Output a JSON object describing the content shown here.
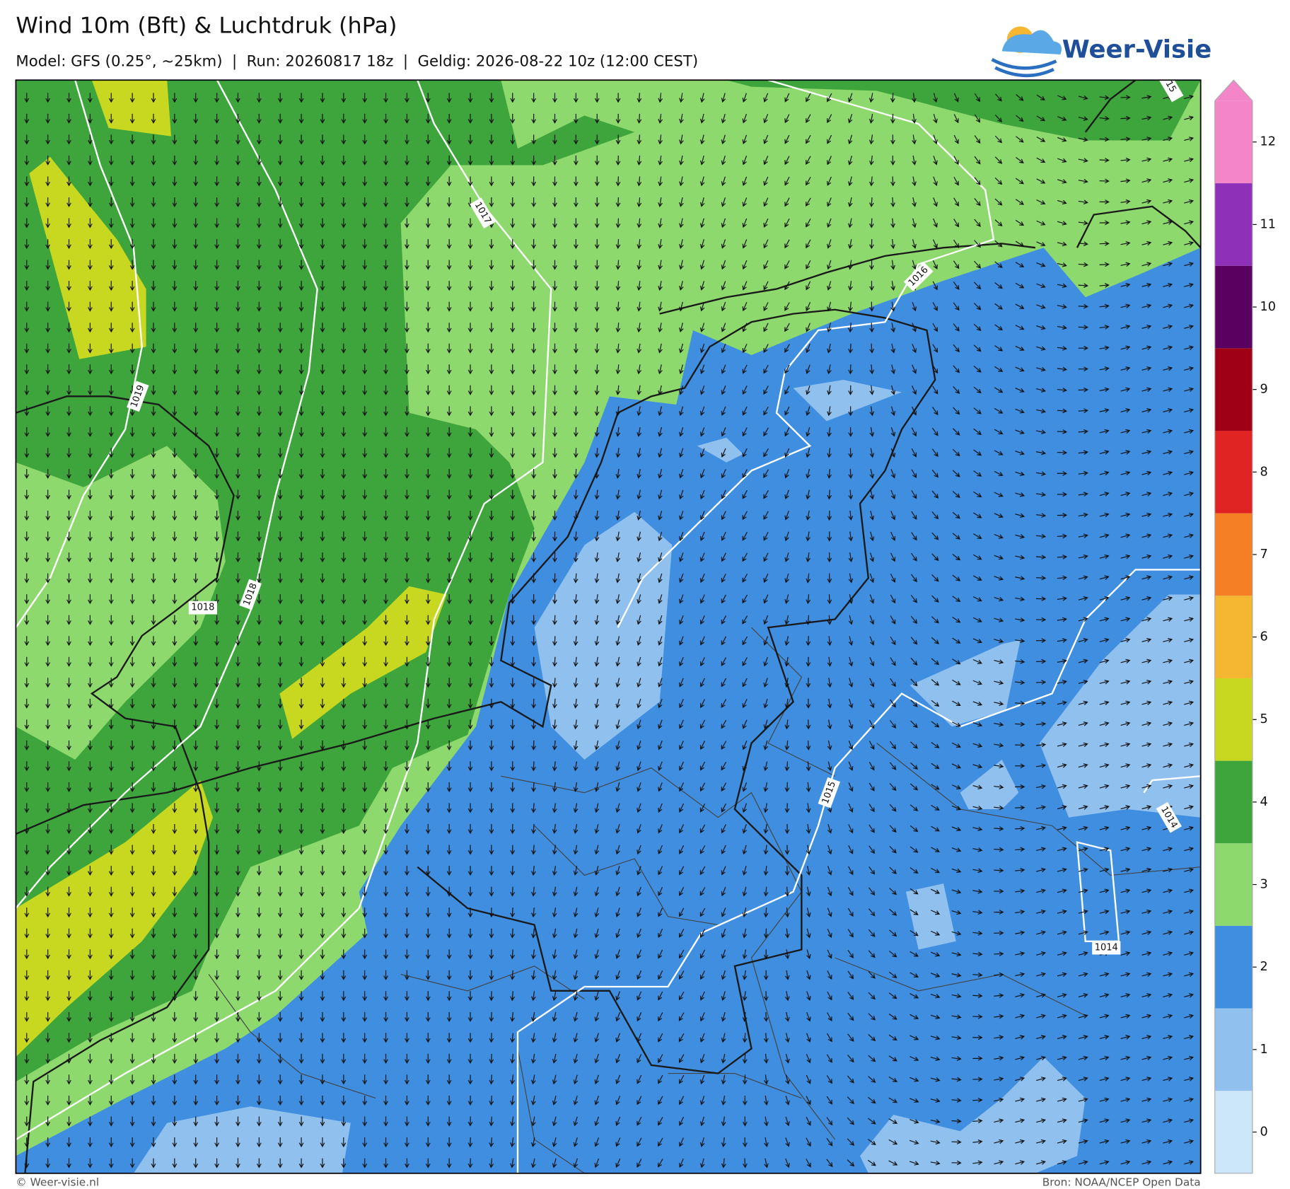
{
  "header": {
    "title": "Wind 10m (Bft) & Luchtdruk (hPa)",
    "subtitle": "Model: GFS (0.25°, ~25km)  |  Run: 20260817 18z  |  Geldig: 2026-08-22 10z (12:00 CEST)"
  },
  "logo": {
    "text": "Weer-Visie"
  },
  "map": {
    "isobar_labels": [
      "1019",
      "1018",
      "1018",
      "1017",
      "1016",
      "1015",
      "1014",
      "1014",
      "15"
    ]
  },
  "colorbar": {
    "ticks": [
      0,
      1,
      2,
      3,
      4,
      5,
      6,
      7,
      8,
      9,
      10,
      11,
      12
    ],
    "colors": [
      "#cce6fa",
      "#90c0ee",
      "#3f8ee0",
      "#8ed96e",
      "#3ea53c",
      "#c8d820",
      "#f5b731",
      "#f47f24",
      "#e02424",
      "#a00016",
      "#5a0060",
      "#8e30b8",
      "#f585c9"
    ]
  },
  "footer": {
    "left": "© Weer-visie.nl",
    "right": "Bron: NOAA/NCEP Open Data"
  }
}
